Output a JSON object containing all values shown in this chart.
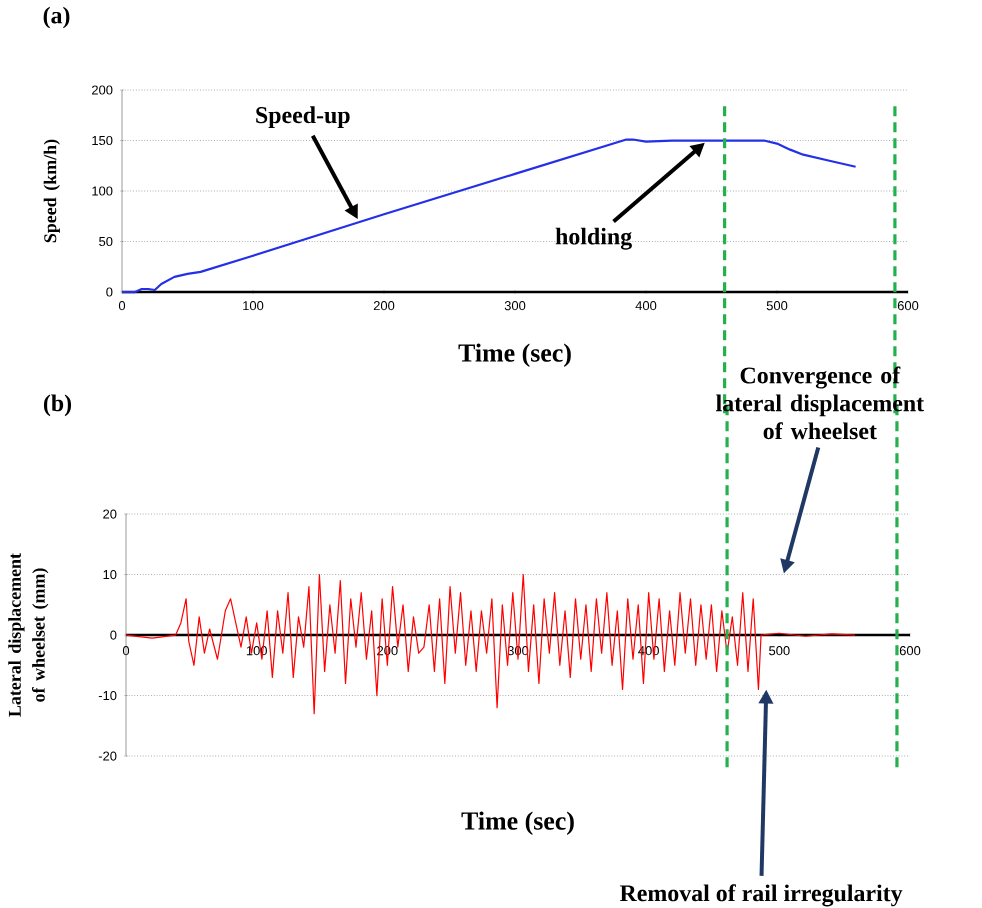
{
  "chart_data": [
    {
      "type": "line",
      "title": "(a)",
      "xlabel": "Time (sec)",
      "ylabel": "Speed (km/h)",
      "color": "#2430e8",
      "x": [
        0,
        10,
        15,
        20,
        25,
        30,
        40,
        50,
        60,
        100,
        200,
        300,
        385,
        390,
        400,
        420,
        450,
        490,
        500,
        510,
        520,
        540,
        560
      ],
      "values": [
        0,
        0,
        3,
        3,
        2,
        8,
        15,
        18,
        20,
        36,
        77,
        117,
        151,
        151,
        149,
        150,
        150,
        150,
        147,
        141,
        136,
        130,
        124
      ],
      "xlim": [
        0,
        600
      ],
      "ylim": [
        0,
        200
      ],
      "xticks": [
        0,
        100,
        200,
        300,
        400,
        500,
        600
      ],
      "yticks": [
        0,
        50,
        100,
        150,
        200
      ],
      "grid": "y",
      "annotations": [
        {
          "text": "Speed-up",
          "x": 180,
          "y": 72
        },
        {
          "text": "holding",
          "x": 445,
          "y": 148
        }
      ],
      "ref_lines": [
        {
          "axis": "x",
          "value": 460,
          "color": "#22b14c",
          "line_style": "dashed"
        },
        {
          "axis": "x",
          "value": 590,
          "color": "#22b14c",
          "line_style": "dashed"
        }
      ]
    },
    {
      "type": "line",
      "title": "(b)",
      "xlabel": "Time (sec)",
      "ylabel": "Lateral displacement of wheelset (mm)",
      "color": "#ff0000",
      "x": [
        0,
        20,
        38,
        42,
        46,
        48,
        52,
        56,
        60,
        64,
        70,
        76,
        80,
        84,
        88,
        92,
        96,
        100,
        104,
        108,
        112,
        116,
        120,
        124,
        128,
        132,
        136,
        140,
        144,
        148,
        152,
        156,
        160,
        164,
        168,
        172,
        176,
        180,
        184,
        188,
        192,
        196,
        200,
        204,
        208,
        212,
        216,
        220,
        224,
        228,
        232,
        236,
        240,
        244,
        248,
        252,
        256,
        260,
        264,
        268,
        272,
        276,
        280,
        284,
        288,
        292,
        296,
        300,
        304,
        308,
        312,
        316,
        320,
        324,
        328,
        332,
        336,
        340,
        344,
        348,
        352,
        356,
        360,
        364,
        368,
        372,
        376,
        380,
        384,
        388,
        392,
        396,
        400,
        404,
        408,
        412,
        416,
        420,
        424,
        428,
        432,
        436,
        440,
        444,
        448,
        452,
        456,
        460,
        464,
        468,
        472,
        476,
        480,
        484,
        486,
        500,
        520,
        540,
        558
      ],
      "values": [
        0,
        -0.5,
        0,
        2,
        6,
        -1,
        -5,
        3,
        -3,
        1,
        -4,
        4,
        6,
        2,
        -2,
        3,
        -3,
        2,
        -4,
        4,
        -7,
        4,
        -3,
        7,
        -7,
        3,
        -2,
        8,
        -13,
        10,
        -6,
        5,
        -3,
        9,
        -8,
        6,
        -2,
        7,
        -4,
        4,
        -10,
        6,
        -5,
        8,
        -2,
        5,
        -6,
        3,
        -3,
        -2,
        5,
        -6,
        6,
        -8,
        8,
        -3,
        7,
        -5,
        4,
        -6,
        4,
        -3,
        6,
        -12,
        5,
        -5,
        7,
        -4,
        10,
        -6,
        5,
        -8,
        6,
        -3,
        7,
        -5,
        4,
        -7,
        6,
        -4,
        5,
        -6,
        6,
        -3,
        7,
        -5,
        4,
        -9,
        6,
        -4,
        5,
        -8,
        7,
        -4,
        6,
        -6,
        4,
        -5,
        7,
        -3,
        6,
        -5,
        5,
        -4,
        5,
        -6,
        4,
        -3,
        3,
        -5,
        7,
        -6,
        6,
        -9,
        0,
        0.3,
        -0.2,
        0.2,
        0
      ],
      "xlim": [
        0,
        600
      ],
      "ylim": [
        -20,
        20
      ],
      "xticks": [
        0,
        100,
        200,
        300,
        400,
        500,
        600
      ],
      "yticks": [
        -20,
        -10,
        0,
        10,
        20
      ],
      "grid": "y",
      "annotations": [
        "Convergence of lateral displacement of wheelset",
        {
          "text": "Removal of rail irregularity",
          "x": 490,
          "y": -9
        }
      ],
      "ref_lines": [
        {
          "axis": "x",
          "value": 460,
          "color": "#22b14c",
          "line_style": "dashed"
        },
        {
          "axis": "x",
          "value": 590,
          "color": "#22b14c",
          "line_style": "dashed"
        }
      ]
    }
  ]
}
